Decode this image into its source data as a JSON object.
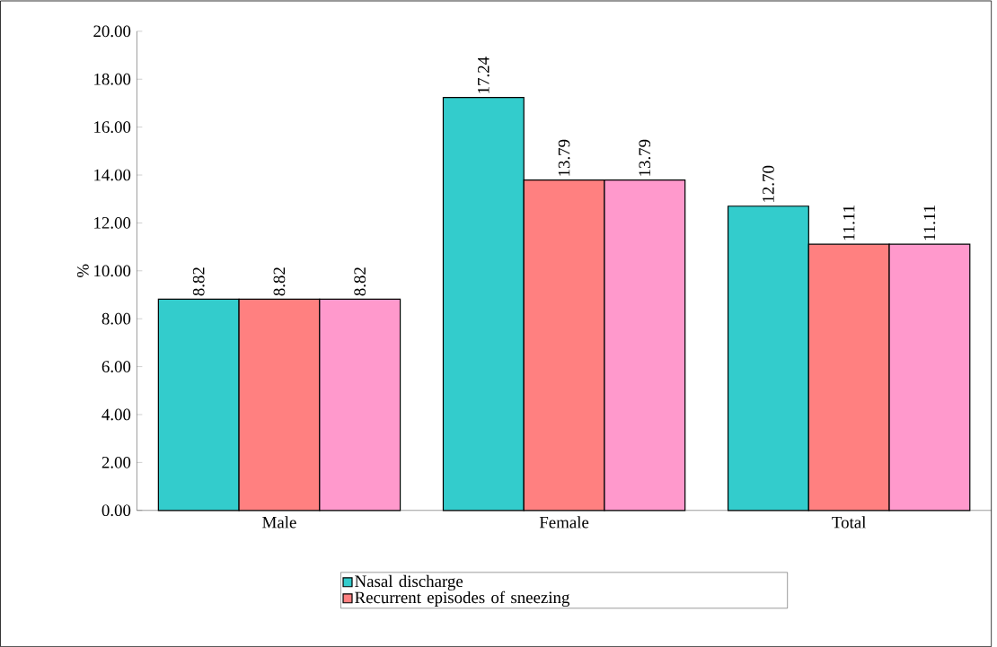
{
  "chart_data": {
    "type": "bar",
    "ylabel": "%",
    "categories": [
      "Male",
      "Female",
      "Total"
    ],
    "series": [
      {
        "name": "Nasal discharge",
        "color": "#33cccc",
        "values": [
          8.82,
          17.24,
          12.7
        ],
        "value_labels": [
          "8.82",
          "17.24",
          "12.70"
        ]
      },
      {
        "name": "Recurrent episodes of sneezing",
        "color": "#ff8080",
        "values": [
          8.82,
          13.79,
          11.11
        ],
        "value_labels": [
          "8.82",
          "13.79",
          "11.11"
        ]
      },
      {
        "color": "#ff99cc",
        "values": [
          8.82,
          13.79,
          11.11
        ],
        "value_labels": [
          "8.82",
          "13.79",
          "11.11"
        ]
      }
    ],
    "ylim": [
      0,
      20
    ],
    "yticks": [
      {
        "value": 0,
        "label": "0.00"
      },
      {
        "value": 2,
        "label": "2.00"
      },
      {
        "value": 4,
        "label": "4.00"
      },
      {
        "value": 6,
        "label": "6.00"
      },
      {
        "value": 8,
        "label": "8.00"
      },
      {
        "value": 10,
        "label": "10.00"
      },
      {
        "value": 12,
        "label": "12.00"
      },
      {
        "value": 14,
        "label": "14.00"
      },
      {
        "value": 16,
        "label": "16.00"
      },
      {
        "value": 18,
        "label": "18.00"
      },
      {
        "value": 20,
        "label": "20.00"
      }
    ],
    "legend": "bottom"
  }
}
